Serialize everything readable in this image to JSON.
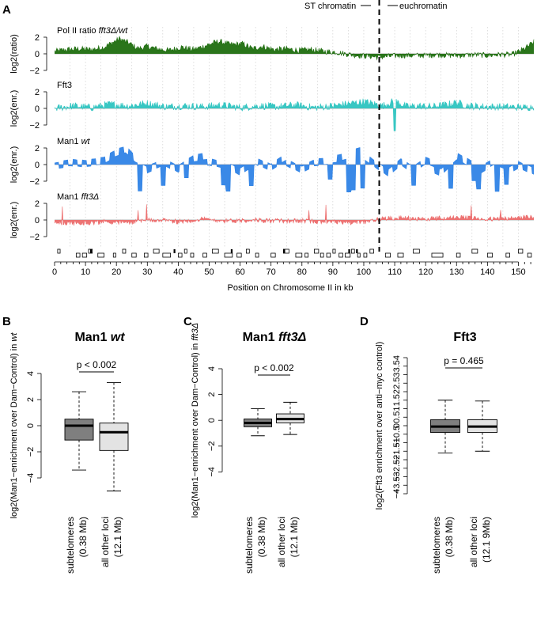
{
  "panel_letters": {
    "a": "A",
    "b": "B",
    "c": "C",
    "d": "D"
  },
  "region_labels": {
    "left": "ST chromatin",
    "right": "euchromatin"
  },
  "chart_data": [
    {
      "panel": "A",
      "type": "area",
      "xlabel": "Position on Chromosome II in kb",
      "xlim": [
        0,
        155
      ],
      "xticks": [
        0,
        10,
        20,
        30,
        40,
        50,
        60,
        70,
        80,
        90,
        100,
        110,
        120,
        130,
        140,
        150
      ],
      "boundary_x": 105,
      "tracks": [
        {
          "key": "pol2",
          "title_main": "Pol II ratio ",
          "title_ital": "fft3Δ/wt",
          "ylabel": "log2(ratio)",
          "yticks": [
            -2,
            0,
            2
          ],
          "ylim": [
            -2,
            2
          ],
          "color": "#1f6e0f",
          "profile": [
            [
              0,
              0.3
            ],
            [
              4,
              0.5
            ],
            [
              8,
              0.6
            ],
            [
              12,
              0.5
            ],
            [
              16,
              0.8
            ],
            [
              19,
              1.4
            ],
            [
              21,
              1.8
            ],
            [
              24,
              1.3
            ],
            [
              27,
              0.6
            ],
            [
              30,
              0.9
            ],
            [
              33,
              0.6
            ],
            [
              37,
              0.4
            ],
            [
              41,
              0.8
            ],
            [
              45,
              0.5
            ],
            [
              49,
              1.0
            ],
            [
              53,
              1.5
            ],
            [
              57,
              1.1
            ],
            [
              61,
              1.2
            ],
            [
              64,
              0.6
            ],
            [
              67,
              0.9
            ],
            [
              71,
              0.5
            ],
            [
              75,
              0.6
            ],
            [
              79,
              0.4
            ],
            [
              83,
              0.5
            ],
            [
              87,
              0.3
            ],
            [
              91,
              0.2
            ],
            [
              94,
              0.0
            ],
            [
              98,
              -0.2
            ],
            [
              102,
              -0.3
            ],
            [
              105,
              -0.4
            ],
            [
              108,
              -0.3
            ],
            [
              112,
              -0.2
            ],
            [
              116,
              -0.2
            ],
            [
              120,
              -0.2
            ],
            [
              124,
              -0.1
            ],
            [
              128,
              -0.2
            ],
            [
              132,
              -0.2
            ],
            [
              136,
              -0.1
            ],
            [
              140,
              -0.2
            ],
            [
              144,
              -0.1
            ],
            [
              148,
              -0.1
            ],
            [
              152,
              0.6
            ],
            [
              155,
              1.4
            ]
          ]
        },
        {
          "key": "fft3",
          "title_main": "Fft3",
          "title_ital": "",
          "ylabel": "log2(enr.)",
          "yticks": [
            -2,
            0,
            2
          ],
          "ylim": [
            -2,
            2
          ],
          "color": "#2ec4c0",
          "profile": [
            [
              0,
              0.0
            ],
            [
              6,
              0.3
            ],
            [
              12,
              0.1
            ],
            [
              18,
              0.5
            ],
            [
              24,
              0.3
            ],
            [
              30,
              0.6
            ],
            [
              36,
              0.2
            ],
            [
              42,
              0.3
            ],
            [
              48,
              0.2
            ],
            [
              54,
              0.4
            ],
            [
              60,
              0.1
            ],
            [
              66,
              0.3
            ],
            [
              72,
              0.2
            ],
            [
              78,
              0.4
            ],
            [
              84,
              0.1
            ],
            [
              90,
              0.3
            ],
            [
              96,
              0.6
            ],
            [
              100,
              0.8
            ],
            [
              104,
              0.5
            ],
            [
              106,
              0.3
            ],
            [
              110,
              0.9
            ],
            [
              114,
              0.2
            ],
            [
              118,
              0.3
            ],
            [
              122,
              0.2
            ],
            [
              126,
              0.4
            ],
            [
              130,
              0.7
            ],
            [
              134,
              0.3
            ],
            [
              140,
              0.2
            ],
            [
              146,
              0.2
            ],
            [
              152,
              0.1
            ],
            [
              155,
              0.2
            ]
          ]
        },
        {
          "key": "man1wt",
          "title_main": "Man1 ",
          "title_ital": "wt",
          "ylabel": "log2(enr.)",
          "yticks": [
            -2,
            0,
            2
          ],
          "ylim": [
            -2,
            2
          ],
          "color": "#2f83e6",
          "profile": [
            [
              0,
              0.2
            ],
            [
              5,
              0.5
            ],
            [
              10,
              0.2
            ],
            [
              16,
              0.4
            ],
            [
              20,
              1.2
            ],
            [
              23,
              1.5
            ],
            [
              26,
              0.3
            ],
            [
              30,
              -0.4
            ],
            [
              35,
              0.4
            ],
            [
              40,
              -0.6
            ],
            [
              45,
              0.5
            ],
            [
              50,
              0.7
            ],
            [
              55,
              0.2
            ],
            [
              60,
              -0.8
            ],
            [
              65,
              0.3
            ],
            [
              70,
              -0.6
            ],
            [
              75,
              0.6
            ],
            [
              80,
              -0.4
            ],
            [
              84,
              0.3
            ],
            [
              88,
              0.4
            ],
            [
              92,
              0.6
            ],
            [
              96,
              1.0
            ],
            [
              100,
              1.4
            ],
            [
              104,
              0.2
            ],
            [
              108,
              -0.9
            ],
            [
              112,
              0.3
            ],
            [
              116,
              -0.8
            ],
            [
              120,
              0.2
            ],
            [
              125,
              -0.6
            ],
            [
              130,
              1.2
            ],
            [
              134,
              0.3
            ],
            [
              138,
              -0.7
            ],
            [
              142,
              0.2
            ],
            [
              146,
              -0.5
            ],
            [
              150,
              0.3
            ],
            [
              155,
              -0.6
            ]
          ]
        },
        {
          "key": "man1fft3",
          "title_main": "Man1 ",
          "title_ital": "fft3Δ",
          "ylabel": "log2(enr.)",
          "yticks": [
            -2,
            0,
            2
          ],
          "ylim": [
            -2,
            2
          ],
          "color": "#ec6d6d",
          "profile": [
            [
              0,
              -0.3
            ],
            [
              8,
              -0.4
            ],
            [
              16,
              -0.2
            ],
            [
              24,
              -0.3
            ],
            [
              32,
              0.0
            ],
            [
              40,
              -0.2
            ],
            [
              48,
              0.1
            ],
            [
              56,
              -0.1
            ],
            [
              64,
              0.0
            ],
            [
              72,
              -0.1
            ],
            [
              80,
              -0.1
            ],
            [
              88,
              -0.2
            ],
            [
              96,
              -0.3
            ],
            [
              102,
              -0.2
            ],
            [
              106,
              0.2
            ],
            [
              112,
              0.3
            ],
            [
              118,
              0.1
            ],
            [
              124,
              0.2
            ],
            [
              130,
              0.3
            ],
            [
              136,
              0.2
            ],
            [
              142,
              0.1
            ],
            [
              148,
              0.2
            ],
            [
              155,
              0.4
            ]
          ]
        }
      ]
    },
    {
      "panel": "B",
      "type": "boxplot",
      "title_main": "Man1 ",
      "title_ital": "wt",
      "ylabel_main": "log2(Man1−enrichment over Dam−Control) in ",
      "ylabel_ital": "wt",
      "ylim": [
        -4,
        4
      ],
      "yticks": [
        -4,
        -2,
        0,
        2,
        4
      ],
      "annotation": "p < 0.002",
      "categories": [
        "subtelomeres\n(0.38 Mb)",
        "all other loci\n(12.1 Mb)"
      ],
      "boxes": [
        {
          "min": -3.4,
          "q1": -1.1,
          "median": 0.0,
          "q3": 0.5,
          "max": 2.6,
          "color": "#7f7f7f"
        },
        {
          "min": -5.0,
          "q1": -1.9,
          "median": -0.5,
          "q3": 0.2,
          "max": 3.3,
          "color": "#e3e3e3"
        }
      ]
    },
    {
      "panel": "C",
      "type": "boxplot",
      "title_main": "Man1 ",
      "title_ital": "fft3Δ",
      "ylabel_main": "log2(Man1−enrichment over Dam−Control) in ",
      "ylabel_ital": "fft3Δ",
      "ylim": [
        -4,
        4
      ],
      "yticks": [
        -4,
        -2,
        0,
        2,
        4
      ],
      "annotation": "p < 0.002",
      "categories": [
        "subtelomeres\n(0.38 Mb)",
        "all other loci\n(12.1 Mb)"
      ],
      "boxes": [
        {
          "min": -1.2,
          "q1": -0.5,
          "median": -0.2,
          "q3": 0.1,
          "max": 0.9,
          "color": "#7f7f7f"
        },
        {
          "min": -1.1,
          "q1": -0.2,
          "median": 0.1,
          "q3": 0.5,
          "max": 1.4,
          "color": "#e3e3e3"
        }
      ]
    },
    {
      "panel": "D",
      "type": "boxplot",
      "title_main": "Fft3",
      "title_ital": "",
      "ylabel_main": "log2(Fft3 enrichment over anti−myc control)",
      "ylabel_ital": "",
      "ylim": [
        -4,
        4
      ],
      "yticks": [
        -4,
        -3.5,
        -3,
        -2.5,
        -2,
        -1.5,
        -1,
        -0.5,
        0,
        0.5,
        1,
        1.5,
        2,
        2.5,
        3,
        3.5,
        4
      ],
      "annotation": "p = 0.465",
      "categories": [
        "subtelomeres\n(0.38 Mb)",
        "all other loci\n(12.1 9Mb)"
      ],
      "boxes": [
        {
          "min": -1.6,
          "q1": -0.4,
          "median": -0.05,
          "q3": 0.35,
          "max": 1.5,
          "color": "#7f7f7f"
        },
        {
          "min": -1.5,
          "q1": -0.4,
          "median": -0.05,
          "q3": 0.35,
          "max": 1.45,
          "color": "#e3e3e3"
        }
      ]
    }
  ]
}
